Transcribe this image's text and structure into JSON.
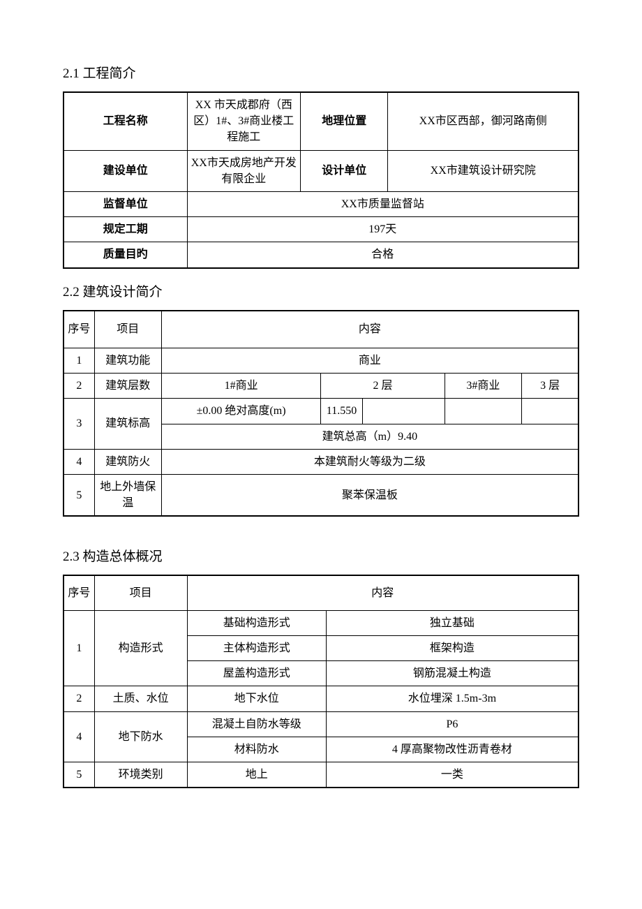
{
  "section1": {
    "heading": "2.1 工程简介",
    "rows": {
      "r1": {
        "l1": "工程名称",
        "v1": "XX 市天成郡府（西区）1#、3#商业楼工程施工",
        "l2": "地理位置",
        "v2": "XX市区西部，御河路南侧"
      },
      "r2": {
        "l1": "建设单位",
        "v1": "XX市天成房地产开发有限企业",
        "l2": "设计单位",
        "v2": "XX市建筑设计研究院"
      },
      "r3": {
        "l1": "监督单位",
        "v1": "XX市质量监督站"
      },
      "r4": {
        "l1": "规定工期",
        "v1": "197天"
      },
      "r5": {
        "l1": "质量目旳",
        "v1": "合格"
      }
    }
  },
  "section2": {
    "heading": "2.2 建筑设计简介",
    "header": {
      "c1": "序号",
      "c2": "项目",
      "c3": "内容"
    },
    "rows": {
      "r1": {
        "n": "1",
        "p": "建筑功能",
        "v": "商业"
      },
      "r2": {
        "n": "2",
        "p": "建筑层数",
        "a": "1#商业",
        "b": "2 层",
        "c": "3#商业",
        "d": "3 层"
      },
      "r3": {
        "n": "3",
        "p": "建筑标高",
        "a": "±0.00 绝对高度(m)",
        "b": "11.550",
        "full": "建筑总高（m）9.40"
      },
      "r4": {
        "n": "4",
        "p": "建筑防火",
        "v": "本建筑耐火等级为二级"
      },
      "r5": {
        "n": "5",
        "p": "地上外墙保温",
        "v": "聚苯保温板"
      }
    }
  },
  "section3": {
    "heading": "2.3 构造总体概况",
    "header": {
      "c1": "序号",
      "c2": "项目",
      "c3": "内容"
    },
    "rows": {
      "r1": {
        "n": "1",
        "p": "构造形式",
        "a1": "基础构造形式",
        "b1": "独立基础",
        "a2": "主体构造形式",
        "b2": "框架构造",
        "a3": "屋盖构造形式",
        "b3": "钢筋混凝土构造"
      },
      "r2": {
        "n": "2",
        "p": "土质、水位",
        "a": "地下水位",
        "b": "水位埋深 1.5m-3m"
      },
      "r3": {
        "n": "4",
        "p": "地下防水",
        "a1": "混凝土自防水等级",
        "b1": "P6",
        "a2": "材料防水",
        "b2": "4 厚高聚物改性沥青卷材"
      },
      "r4": {
        "n": "5",
        "p": "环境类别",
        "a": "地上",
        "b": "一类"
      }
    }
  }
}
